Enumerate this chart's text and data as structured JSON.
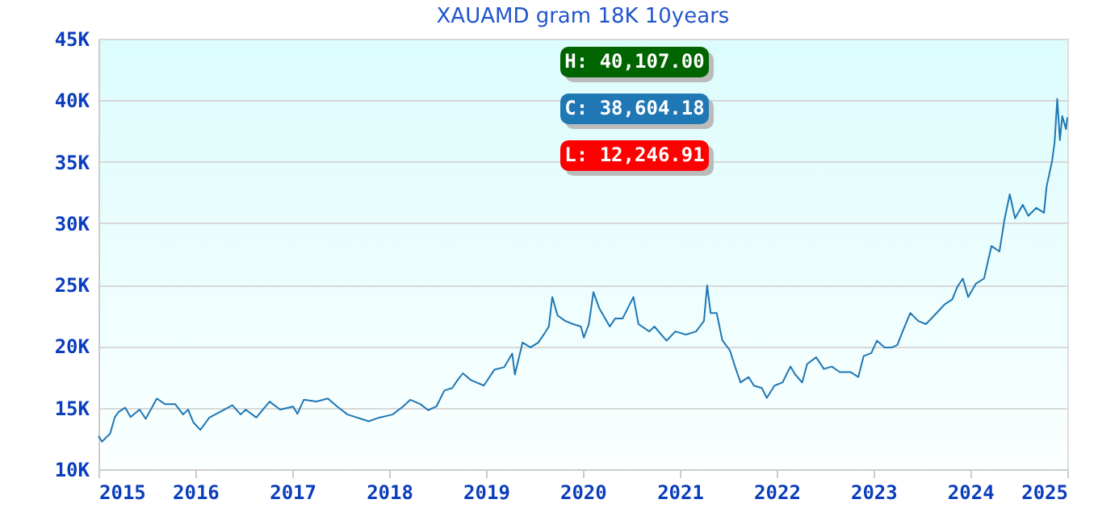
{
  "chart_data": {
    "type": "line",
    "title": "XAUAMD gram 18K 10years",
    "x": [
      "2015-01-01",
      "2015-01-14",
      "2015-02-14",
      "2015-03-03",
      "2015-03-17",
      "2015-04-12",
      "2015-05-02",
      "2015-06-05",
      "2015-06-28",
      "2015-08-09",
      "2015-09-08",
      "2015-10-17",
      "2015-11-16",
      "2015-12-05",
      "2015-12-25",
      "2016-01-20",
      "2016-02-23",
      "2016-04-02",
      "2016-05-20",
      "2016-06-20",
      "2016-07-09",
      "2016-08-18",
      "2016-10-07",
      "2016-11-16",
      "2017-01-04",
      "2017-01-20",
      "2017-02-13",
      "2017-04-02",
      "2017-05-15",
      "2017-06-19",
      "2017-07-28",
      "2017-09-17",
      "2017-10-16",
      "2017-11-25",
      "2018-01-14",
      "2018-02-22",
      "2018-03-22",
      "2018-04-28",
      "2018-05-28",
      "2018-06-28",
      "2018-07-28",
      "2018-08-27",
      "2018-09-16",
      "2018-10-06",
      "2018-11-05",
      "2018-12-24",
      "2019-02-02",
      "2019-03-11",
      "2019-04-10",
      "2019-04-20",
      "2019-05-19",
      "2019-06-18",
      "2019-07-17",
      "2019-08-07",
      "2019-08-26",
      "2019-09-08",
      "2019-09-28",
      "2019-10-27",
      "2019-11-26",
      "2019-12-25",
      "2020-01-05",
      "2020-01-24",
      "2020-02-10",
      "2020-03-03",
      "2020-04-12",
      "2020-05-02",
      "2020-05-30",
      "2020-07-10",
      "2020-07-29",
      "2020-09-08",
      "2020-09-27",
      "2020-11-12",
      "2020-12-15",
      "2021-01-24",
      "2021-03-03",
      "2021-04-02",
      "2021-04-14",
      "2021-04-27",
      "2021-05-20",
      "2021-06-10",
      "2021-07-09",
      "2021-07-28",
      "2021-08-18",
      "2021-09-17",
      "2021-10-07",
      "2021-11-06",
      "2021-11-25",
      "2021-12-24",
      "2022-01-23",
      "2022-02-22",
      "2022-03-12",
      "2022-04-07",
      "2022-04-26",
      "2022-05-30",
      "2022-06-28",
      "2022-07-28",
      "2022-08-27",
      "2022-10-06",
      "2022-11-05",
      "2022-11-25",
      "2022-12-24",
      "2023-01-14",
      "2023-02-12",
      "2023-03-12",
      "2023-04-01",
      "2023-04-21",
      "2023-05-20",
      "2023-06-19",
      "2023-07-18",
      "2023-08-27",
      "2023-09-26",
      "2023-10-25",
      "2023-11-14",
      "2023-12-04",
      "2023-12-24",
      "2024-01-23",
      "2024-02-22",
      "2024-03-21",
      "2024-04-20",
      "2024-05-10",
      "2024-05-29",
      "2024-06-18",
      "2024-07-17",
      "2024-08-07",
      "2024-09-06",
      "2024-10-05",
      "2024-10-15",
      "2024-11-04",
      "2024-11-14",
      "2024-11-24",
      "2024-12-04",
      "2024-12-13",
      "2024-12-27",
      "2025-01-01"
    ],
    "series": [
      {
        "color": "#1f77b4",
        "values": [
          12700,
          12246.91,
          12900,
          14200,
          14650,
          15000,
          14250,
          14850,
          14100,
          15750,
          15300,
          15300,
          14450,
          14850,
          13800,
          13200,
          14200,
          14650,
          15200,
          14450,
          14850,
          14200,
          15500,
          14850,
          15100,
          14500,
          15650,
          15500,
          15750,
          15100,
          14450,
          14100,
          13900,
          14200,
          14450,
          15100,
          15650,
          15300,
          14800,
          15100,
          16400,
          16600,
          17250,
          17800,
          17250,
          16800,
          18100,
          18300,
          19400,
          17700,
          20300,
          19900,
          20300,
          20950,
          21600,
          24000,
          22500,
          22050,
          21800,
          21600,
          20700,
          21800,
          24400,
          23100,
          21600,
          22250,
          22250,
          24000,
          21800,
          21200,
          21600,
          20450,
          21200,
          20950,
          21200,
          22050,
          24950,
          22700,
          22700,
          20500,
          19650,
          18350,
          17050,
          17500,
          16800,
          16600,
          15800,
          16800,
          17050,
          18350,
          17700,
          17050,
          18550,
          19100,
          18150,
          18350,
          17900,
          17900,
          17500,
          19200,
          19450,
          20450,
          19900,
          19900,
          20100,
          21200,
          22700,
          22050,
          21800,
          22700,
          23400,
          23800,
          24850,
          25500,
          24000,
          25100,
          25500,
          28150,
          27700,
          30400,
          32350,
          30400,
          31500,
          30600,
          31250,
          30850,
          33000,
          35000,
          36550,
          40107,
          36750,
          38700,
          37650,
          38604.18
        ]
      }
    ],
    "xlim": [
      "2015-01-01",
      "2025-01-01"
    ],
    "xticks": [
      "2015",
      "2016",
      "2017",
      "2018",
      "2019",
      "2020",
      "2021",
      "2022",
      "2023",
      "2024",
      "2025"
    ],
    "ylim": [
      10000,
      45000
    ],
    "yticks": [
      {
        "value": 10000,
        "label": "10K"
      },
      {
        "value": 15000,
        "label": "15K"
      },
      {
        "value": 20000,
        "label": "20K"
      },
      {
        "value": 25000,
        "label": "25K"
      },
      {
        "value": 30000,
        "label": "30K"
      },
      {
        "value": 35000,
        "label": "35K"
      },
      {
        "value": 40000,
        "label": "40K"
      },
      {
        "value": 45000,
        "label": "45K"
      }
    ],
    "grid": "y",
    "annotations": [
      "H: 40,107.00",
      "C: 38,604.18",
      "L: 12,246.91"
    ]
  }
}
